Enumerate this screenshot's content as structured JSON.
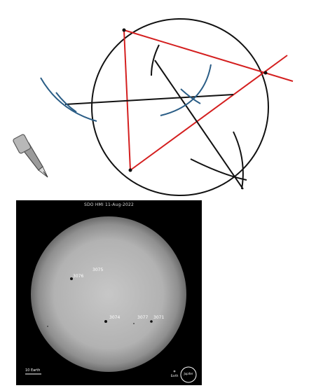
{
  "construction": {
    "colors": {
      "circle": "#111111",
      "triangle": "#d41f1f",
      "compass_arcs": "#2a5d86",
      "construction_lines": "#111111",
      "pencil_body": "#9b9b9b"
    },
    "icons": [
      "compass-pencil-icon"
    ]
  },
  "sun_image": {
    "title": "SDO HMI  11-Aug-2022",
    "sunspots": [
      {
        "label": "3075"
      },
      {
        "label": "3076"
      },
      {
        "label": "3074"
      },
      {
        "label": "3077"
      },
      {
        "label": "3071"
      }
    ],
    "scale_bar_label": "10 Earth",
    "earth_marker_label": "Earth",
    "jupiter_label": "Jupiter"
  }
}
